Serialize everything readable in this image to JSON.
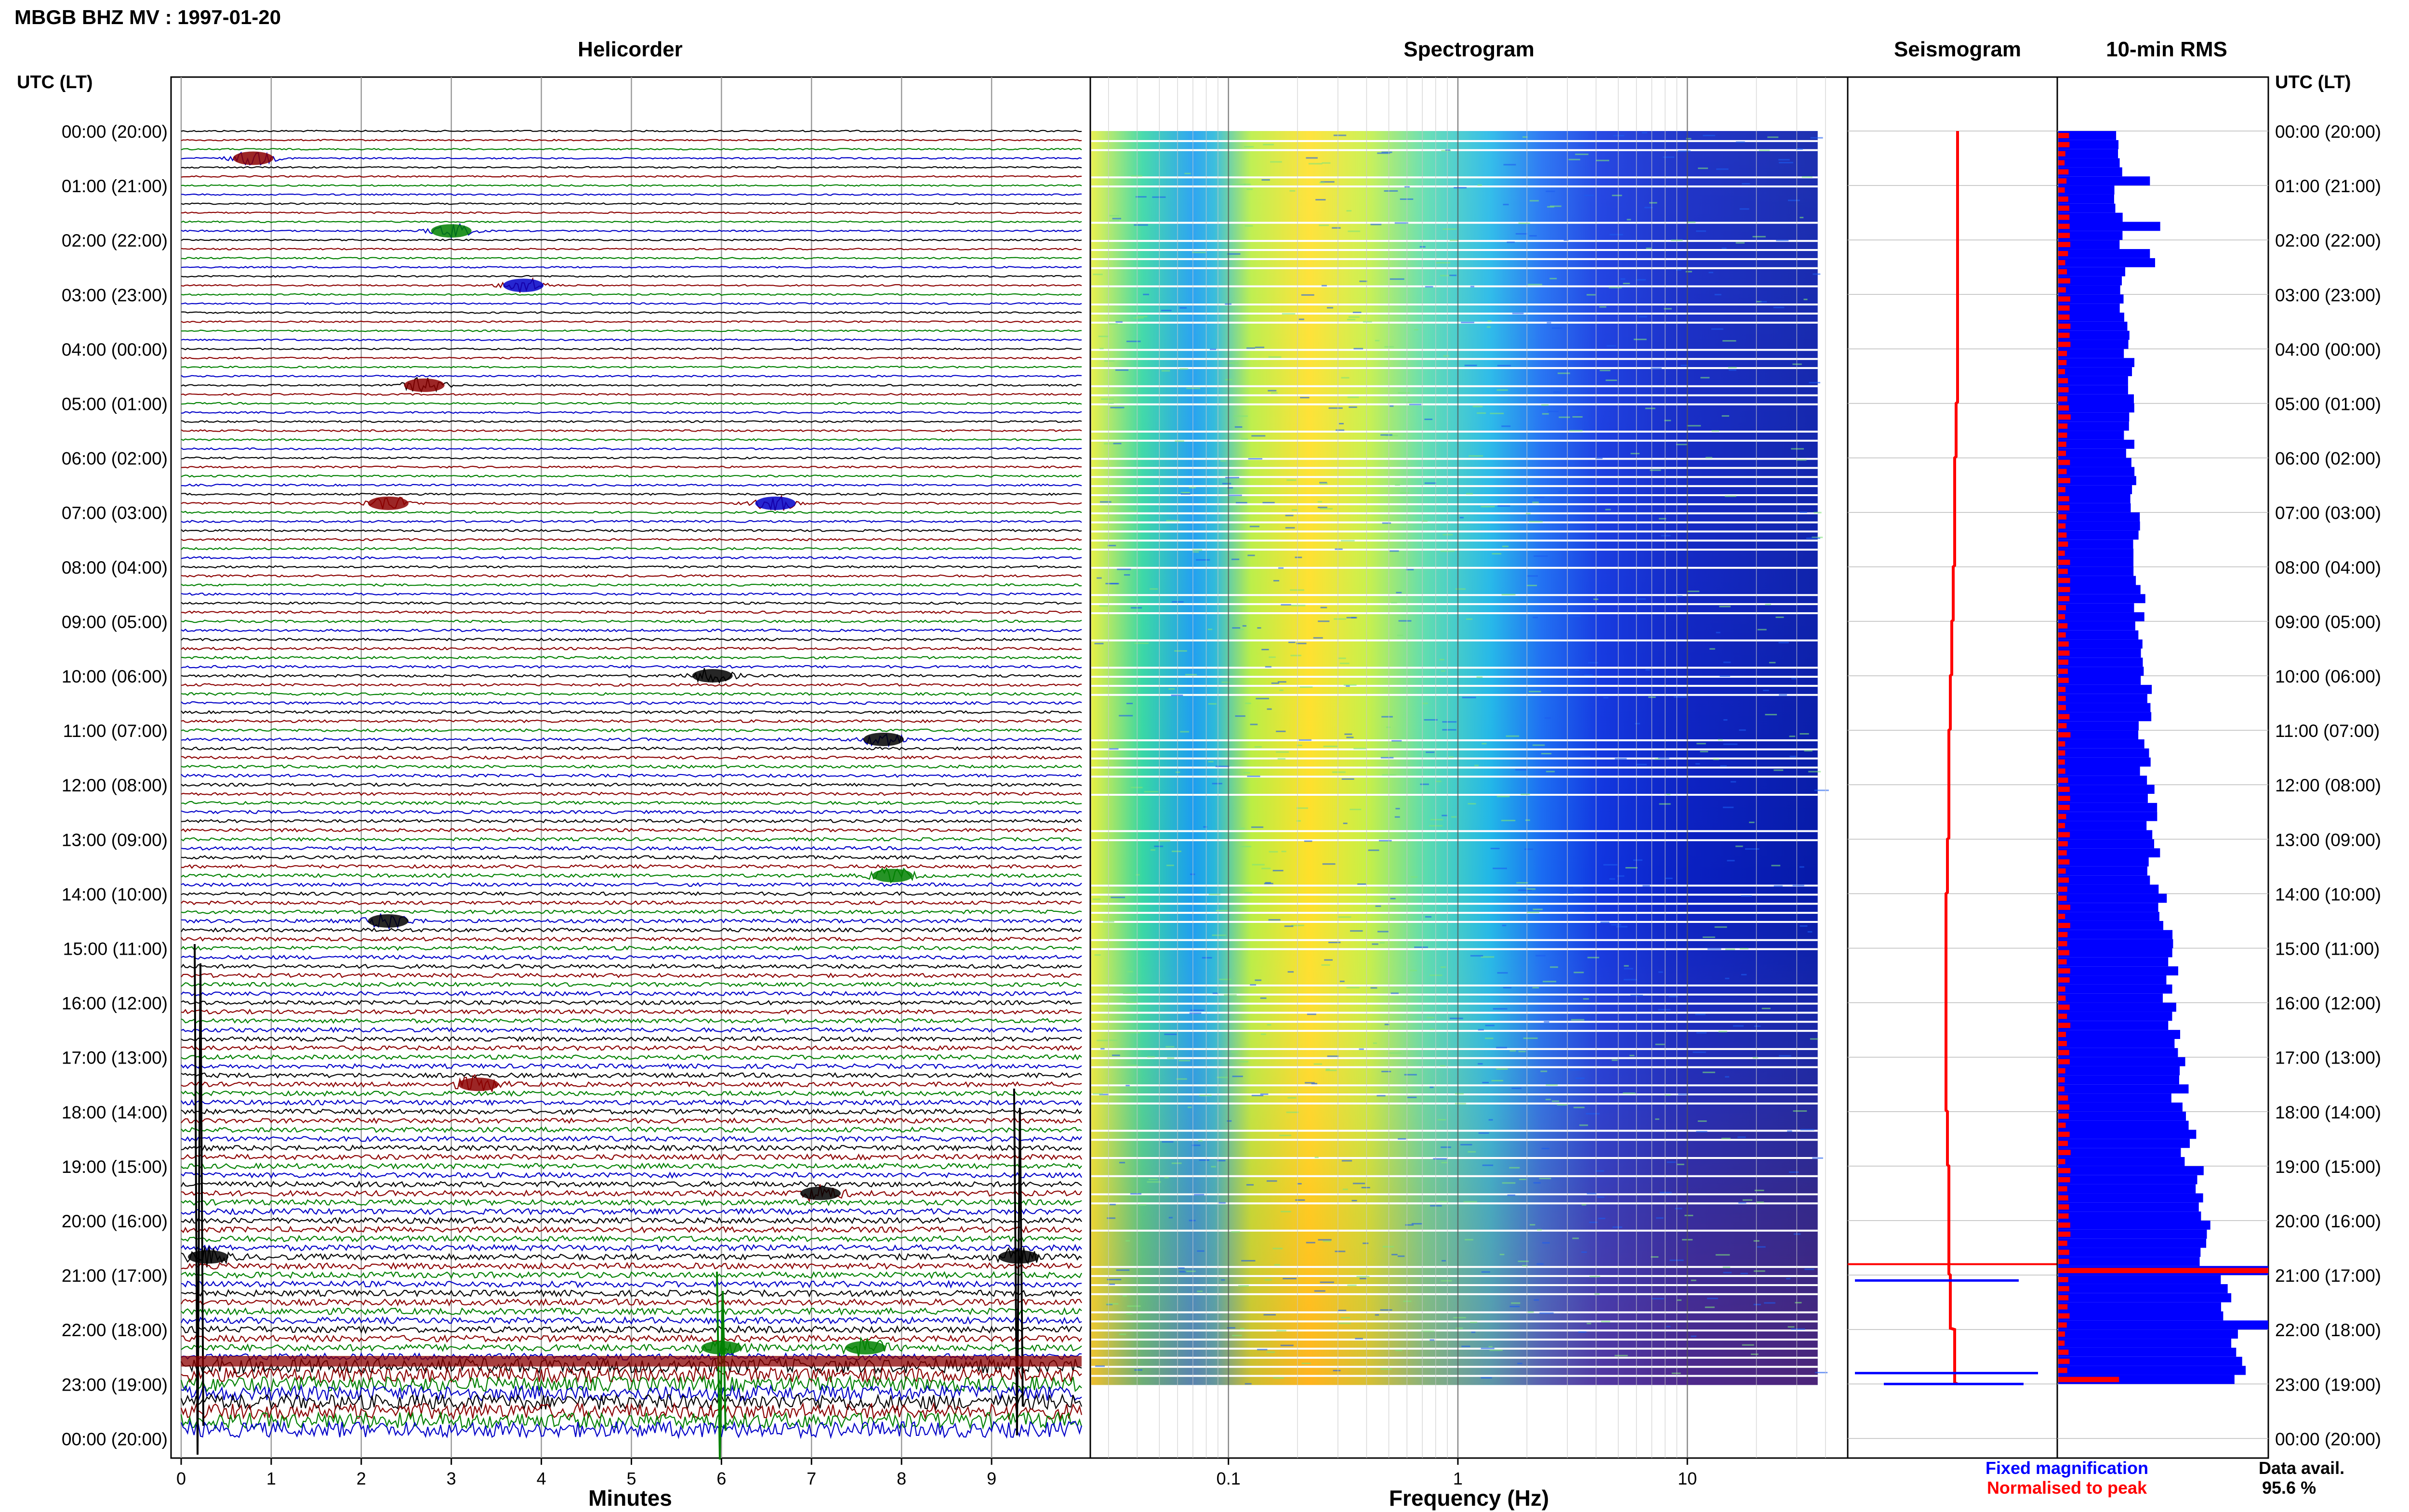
{
  "header": {
    "station_title": "MBGB BHZ MV : 1997-01-20"
  },
  "panels": {
    "helicorder": "Helicorder",
    "spectrogram": "Spectrogram",
    "seismogram": "Seismogram",
    "rms": "10-min RMS"
  },
  "axis": {
    "time_label_left": "UTC (LT)",
    "time_label_right": "UTC (LT)",
    "time_ticks": [
      "00:00 (20:00)",
      "01:00 (21:00)",
      "02:00 (22:00)",
      "03:00 (23:00)",
      "04:00 (00:00)",
      "05:00 (01:00)",
      "06:00 (02:00)",
      "07:00 (03:00)",
      "08:00 (04:00)",
      "09:00 (05:00)",
      "10:00 (06:00)",
      "11:00 (07:00)",
      "12:00 (08:00)",
      "13:00 (09:00)",
      "14:00 (10:00)",
      "15:00 (11:00)",
      "16:00 (12:00)",
      "17:00 (13:00)",
      "18:00 (14:00)",
      "19:00 (15:00)",
      "20:00 (16:00)",
      "21:00 (17:00)",
      "22:00 (18:00)",
      "23:00 (19:00)",
      "00:00 (20:00)"
    ],
    "minutes_label": "Minutes",
    "minutes_ticks": [
      "0",
      "1",
      "2",
      "3",
      "4",
      "5",
      "6",
      "7",
      "8",
      "9"
    ],
    "frequency_label": "Frequency (Hz)",
    "frequency_ticks": [
      "0.1",
      "1",
      "10"
    ]
  },
  "legend": {
    "fixed": "Fixed magnification",
    "normalised": "Normalised to peak"
  },
  "availability": {
    "label": "Data avail.",
    "value": "95.6 %"
  },
  "colors": {
    "trace_cycle": [
      "#000000",
      "#8b0000",
      "#008000",
      "#0000c8"
    ],
    "fixed_magnification": "#0000ff",
    "normalised_peak": "#ff0000",
    "grid": "#9a9a9a"
  },
  "chart_data": [
    {
      "type": "line",
      "panel": "helicorder",
      "x_unit": "minutes",
      "xlim": [
        0,
        10
      ],
      "rows_per_hour": 6,
      "hours": 24,
      "events": [
        {
          "hour": 0,
          "row": 3,
          "minute": 0.8,
          "color": "darkred"
        },
        {
          "hour": 1,
          "row": 5,
          "minute": 3.0,
          "color": "green"
        },
        {
          "hour": 2,
          "row": 5,
          "minute": 3.8,
          "color": "blue"
        },
        {
          "hour": 4,
          "row": 4,
          "minute": 2.7,
          "color": "darkred"
        },
        {
          "hour": 6,
          "row": 5,
          "minute": 2.3,
          "color": "darkred"
        },
        {
          "hour": 6,
          "row": 5,
          "minute": 6.6,
          "color": "blue"
        },
        {
          "hour": 10,
          "row": 0,
          "minute": 5.9,
          "color": "black"
        },
        {
          "hour": 11,
          "row": 1,
          "minute": 7.8,
          "color": "black"
        },
        {
          "hour": 13,
          "row": 4,
          "minute": 7.9,
          "color": "green"
        },
        {
          "hour": 14,
          "row": 3,
          "minute": 2.3,
          "color": "black"
        },
        {
          "hour": 17,
          "row": 3,
          "minute": 3.3,
          "color": "darkred"
        },
        {
          "hour": 19,
          "row": 3,
          "minute": 7.1,
          "color": "black"
        },
        {
          "hour": 20,
          "row": 4,
          "minute": 0.3,
          "color": "black"
        },
        {
          "hour": 20,
          "row": 4,
          "minute": 9.3,
          "color": "black"
        },
        {
          "hour": 22,
          "row": 2,
          "minute": 6.0,
          "color": "green"
        },
        {
          "hour": 22,
          "row": 2,
          "minute": 7.6,
          "color": "green"
        }
      ]
    },
    {
      "type": "heatmap",
      "panel": "spectrogram",
      "x_scale": "log",
      "x_unit": "Hz",
      "xlim": [
        0.025,
        50
      ],
      "data_end_hz": 37,
      "peak_energy_band_hz": [
        0.14,
        0.5
      ],
      "colormap": "jet"
    },
    {
      "type": "line",
      "panel": "seismogram",
      "series": [
        {
          "name": "Fixed magnification",
          "color": "blue"
        },
        {
          "name": "Normalised to peak",
          "color": "red"
        }
      ],
      "amplitude_by_hour": [
        1.2,
        1.1,
        1.1,
        1.0,
        1.0,
        1.0,
        1.0,
        1.1,
        1.1,
        1.1,
        1.2,
        1.2,
        1.3,
        1.5,
        1.8,
        1.9,
        1.9,
        1.7,
        1.6,
        1.6,
        1.8,
        2.0,
        2.2,
        3.0
      ],
      "offset_by_hour": [
        0,
        0,
        0,
        0,
        0,
        -0.5,
        -1,
        -1,
        -1.5,
        -2,
        -2.5,
        -3,
        -3,
        -3.5,
        -4,
        -4,
        -4,
        -4,
        -3.5,
        -3,
        -3,
        -2.5,
        -1,
        0
      ]
    },
    {
      "type": "bar",
      "panel": "rms",
      "orientation": "horizontal",
      "categories_unit": "10-min interval index (0-143)",
      "series": [
        {
          "name": "Fixed magnification",
          "color": "blue",
          "hourly_values": [
            1.2,
            1.2,
            1.3,
            1.3,
            1.4,
            1.4,
            1.5,
            1.6,
            1.6,
            1.6,
            1.7,
            1.7,
            1.8,
            1.9,
            2.1,
            2.2,
            2.3,
            2.4,
            2.6,
            2.8,
            3.0,
            3.2,
            3.4,
            3.6
          ],
          "peaks": [
            {
              "index": 5,
              "value": 1.8
            },
            {
              "index": 10,
              "value": 2.0
            },
            {
              "index": 14,
              "value": 1.9
            },
            {
              "index": 13,
              "value": 1.8
            },
            {
              "index": 125,
              "value": 4.1
            },
            {
              "index": 131,
              "value": 4.1
            }
          ]
        },
        {
          "name": "Normalised to peak",
          "color": "red",
          "typical_value": 0.2,
          "peaks": [
            {
              "index": 125,
              "value": 4.1
            },
            {
              "index": 137,
              "value": 1.2
            }
          ]
        }
      ]
    }
  ]
}
